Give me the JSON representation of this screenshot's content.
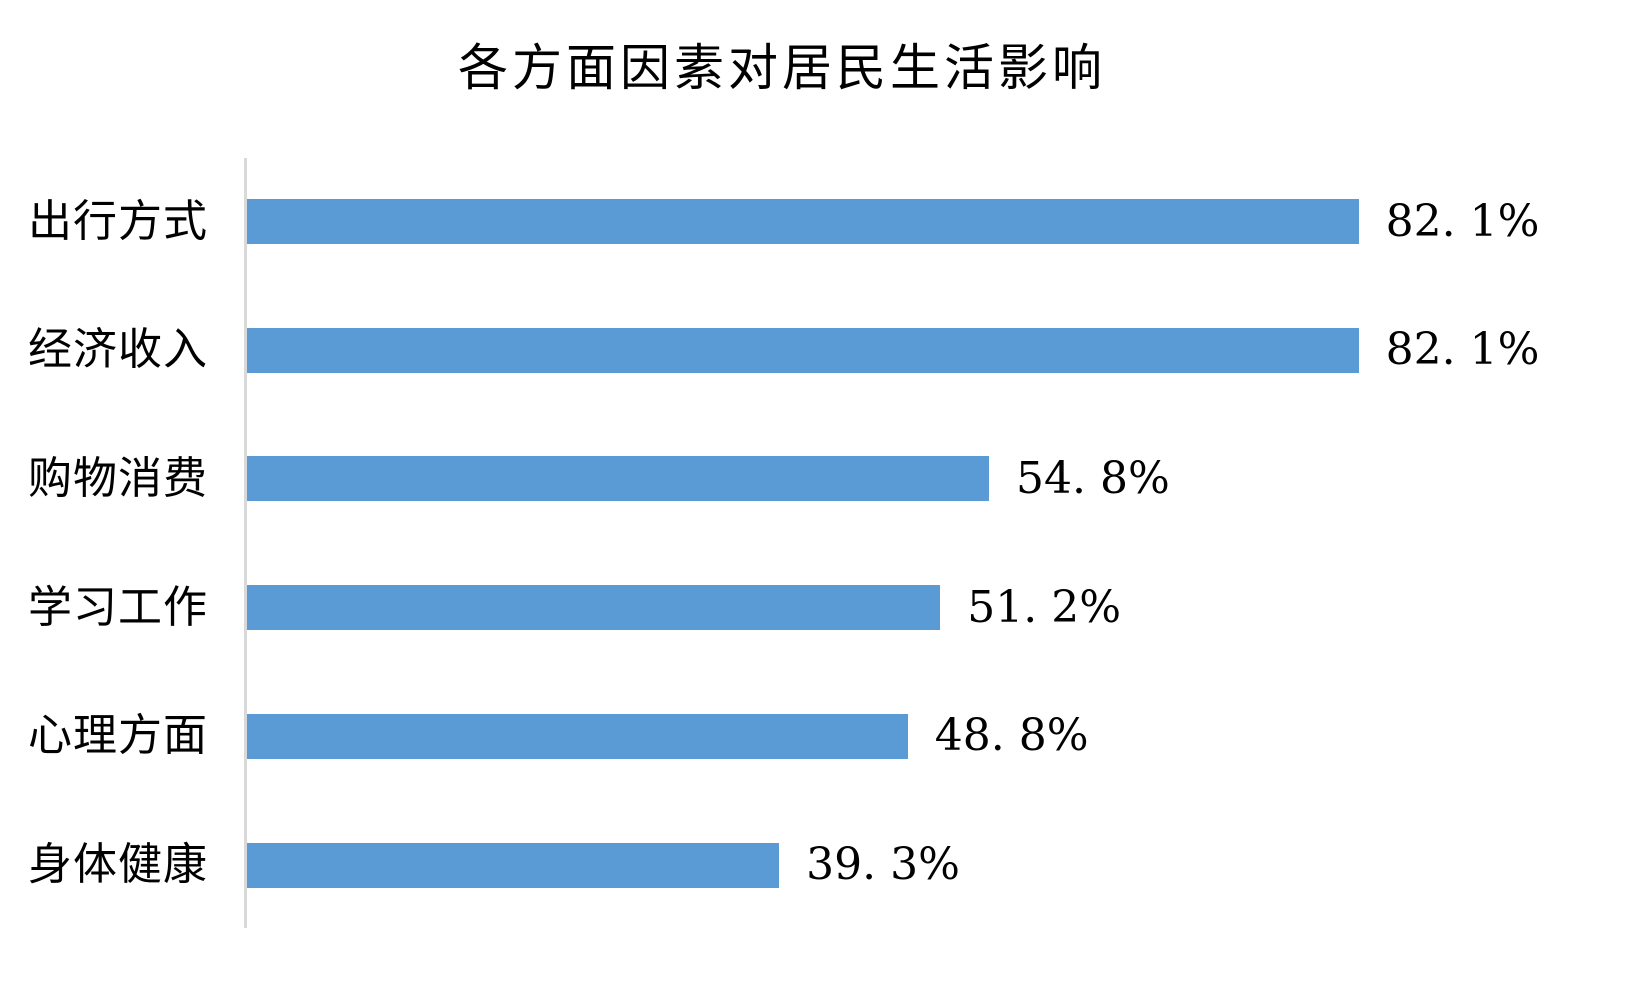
{
  "chart_data": {
    "type": "bar",
    "orientation": "horizontal",
    "title": "各方面因素对居民生活影响",
    "categories": [
      "出行方式",
      "经济收入",
      "购物消费",
      "学习工作",
      "心理方面",
      "身体健康"
    ],
    "values": [
      82.1,
      82.1,
      54.8,
      51.2,
      48.8,
      39.3
    ],
    "value_labels": [
      "82. 1%",
      "82. 1%",
      "54. 8%",
      "51. 2%",
      "48. 8%",
      "39. 3%"
    ],
    "unit": "%",
    "xlabel": "",
    "ylabel": "",
    "grid": false,
    "legend": false,
    "value_label_position": "outside-end",
    "bar_color": "#5b9bd5",
    "axis_line_color": "#d9d9d9",
    "text_color": "#000000",
    "background_color": "#ffffff"
  }
}
